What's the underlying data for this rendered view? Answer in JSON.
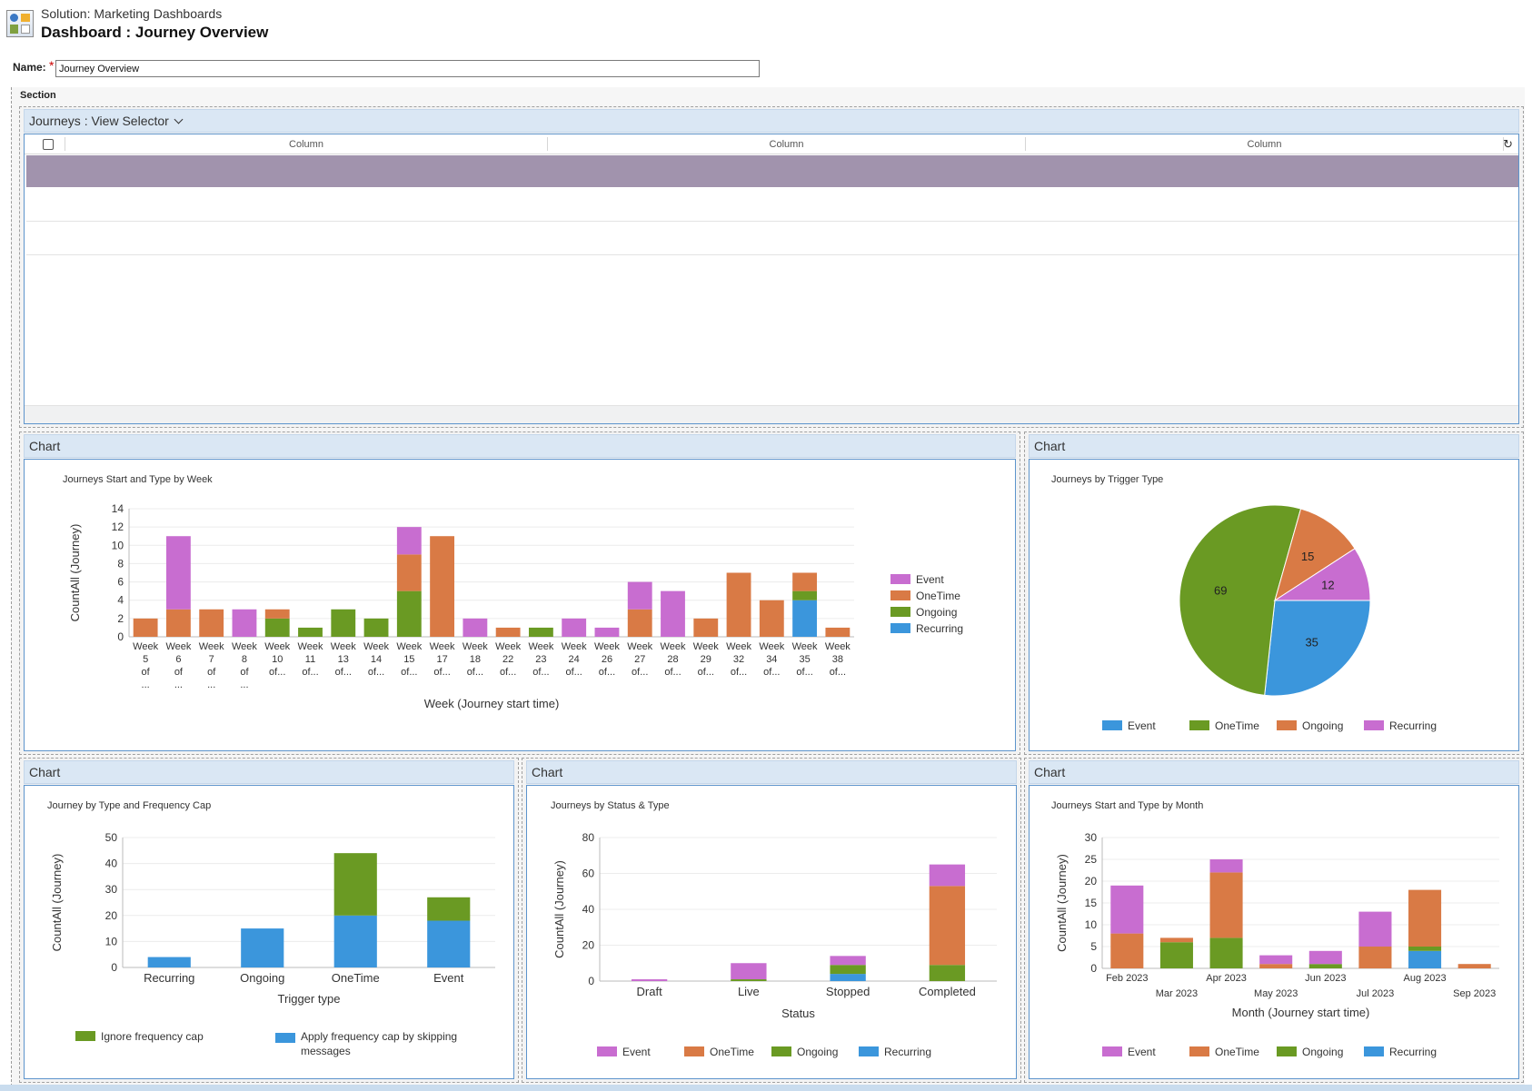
{
  "header": {
    "solution_title": "Solution: Marketing Dashboards",
    "dashboard_title": "Dashboard : Journey Overview"
  },
  "form": {
    "name_label": "Name:",
    "required_marker": "*",
    "name_value": "Journey Overview"
  },
  "section": {
    "label": "Section"
  },
  "grid_panel": {
    "title": "Journeys : View Selector",
    "columns": [
      "Column",
      "Column",
      "Column"
    ]
  },
  "panels": {
    "weekly": {
      "header": "Chart"
    },
    "trigger": {
      "header": "Chart"
    },
    "freqcap": {
      "header": "Chart"
    },
    "status": {
      "header": "Chart"
    },
    "monthly": {
      "header": "Chart"
    }
  },
  "colors": {
    "event": "#c86dd0",
    "onetime": "#d97a45",
    "ongoing": "#6a9a23",
    "recurring": "#3b96dc",
    "panel_header_bg": "#dae7f4",
    "panel_border": "#5d94cc",
    "selected_row": "#a193ad"
  },
  "chart_data": [
    {
      "id": "weekly",
      "type": "bar",
      "stacked": true,
      "title": "Journeys Start and Type by Week",
      "xlabel": "Week (Journey start time)",
      "ylabel": "CountAll (Journey)",
      "ylim": [
        0,
        14
      ],
      "yticks": [
        0,
        2,
        4,
        6,
        8,
        10,
        12,
        14
      ],
      "categories": [
        "Week 5 of ...",
        "Week 6 of ...",
        "Week 7 of ...",
        "Week 8 of ...",
        "Week 10 of...",
        "Week 11 of...",
        "Week 13 of...",
        "Week 14 of...",
        "Week 15 of...",
        "Week 17 of...",
        "Week 18 of...",
        "Week 22 of...",
        "Week 23 of...",
        "Week 24 of...",
        "Week 26 of...",
        "Week 27 of...",
        "Week 28 of...",
        "Week 29 of...",
        "Week 32 of...",
        "Week 34 of...",
        "Week 35 of...",
        "Week 38 of..."
      ],
      "tick_lines": [
        [
          "Week",
          "5",
          "of",
          "..."
        ],
        [
          "Week",
          "6",
          "of",
          "..."
        ],
        [
          "Week",
          "7",
          "of",
          "..."
        ],
        [
          "Week",
          "8",
          "of",
          "..."
        ],
        [
          "Week",
          "10",
          "of..."
        ],
        [
          "Week",
          "11",
          "of..."
        ],
        [
          "Week",
          "13",
          "of..."
        ],
        [
          "Week",
          "14",
          "of..."
        ],
        [
          "Week",
          "15",
          "of..."
        ],
        [
          "Week",
          "17",
          "of..."
        ],
        [
          "Week",
          "18",
          "of..."
        ],
        [
          "Week",
          "22",
          "of..."
        ],
        [
          "Week",
          "23",
          "of..."
        ],
        [
          "Week",
          "24",
          "of..."
        ],
        [
          "Week",
          "26",
          "of..."
        ],
        [
          "Week",
          "27",
          "of..."
        ],
        [
          "Week",
          "28",
          "of..."
        ],
        [
          "Week",
          "29",
          "of..."
        ],
        [
          "Week",
          "32",
          "of..."
        ],
        [
          "Week",
          "34",
          "of..."
        ],
        [
          "Week",
          "35",
          "of..."
        ],
        [
          "Week",
          "38",
          "of..."
        ]
      ],
      "series": [
        {
          "name": "Recurring",
          "color": "#3b96dc",
          "values": [
            0,
            0,
            0,
            0,
            0,
            0,
            0,
            0,
            0,
            0,
            0,
            0,
            0,
            0,
            0,
            0,
            0,
            0,
            0,
            0,
            4,
            0
          ]
        },
        {
          "name": "Ongoing",
          "color": "#6a9a23",
          "values": [
            0,
            0,
            0,
            0,
            2,
            1,
            3,
            2,
            5,
            0,
            0,
            0,
            1,
            0,
            0,
            0,
            0,
            0,
            0,
            0,
            1,
            0
          ]
        },
        {
          "name": "OneTime",
          "color": "#d97a45",
          "values": [
            2,
            3,
            3,
            0,
            1,
            0,
            0,
            0,
            4,
            11,
            0,
            1,
            0,
            0,
            0,
            3,
            0,
            2,
            7,
            4,
            2,
            1
          ]
        },
        {
          "name": "Event",
          "color": "#c86dd0",
          "values": [
            0,
            8,
            0,
            3,
            0,
            0,
            0,
            0,
            3,
            0,
            2,
            0,
            0,
            2,
            1,
            3,
            5,
            0,
            0,
            0,
            0,
            0
          ]
        }
      ],
      "legend": [
        "Event",
        "OneTime",
        "Ongoing",
        "Recurring"
      ],
      "legend_position": "right",
      "grid": true
    },
    {
      "id": "trigger",
      "type": "pie",
      "title": "Journeys by Trigger Type",
      "slices": [
        {
          "label": "Event",
          "value": 35,
          "color": "#3b96dc"
        },
        {
          "label": "OneTime",
          "value": 69,
          "color": "#6a9a23"
        },
        {
          "label": "Ongoing",
          "value": 15,
          "color": "#d97a45"
        },
        {
          "label": "Recurring",
          "value": 12,
          "color": "#c86dd0"
        }
      ],
      "legend": [
        "Event",
        "OneTime",
        "Ongoing",
        "Recurring"
      ],
      "legend_position": "bottom"
    },
    {
      "id": "freqcap",
      "type": "bar",
      "stacked": true,
      "title": "Journey by Type and Frequency Cap",
      "xlabel": "Trigger type",
      "ylabel": "CountAll (Journey)",
      "ylim": [
        0,
        50
      ],
      "yticks": [
        0,
        10,
        20,
        30,
        40,
        50
      ],
      "categories": [
        "Recurring",
        "Ongoing",
        "OneTime",
        "Event"
      ],
      "series": [
        {
          "name": "Apply frequency cap by skipping messages",
          "color": "#3b96dc",
          "values": [
            4,
            15,
            20,
            18
          ]
        },
        {
          "name": "Ignore frequency cap",
          "color": "#6a9a23",
          "values": [
            0,
            0,
            24,
            9
          ]
        }
      ],
      "legend": [
        "Ignore frequency cap",
        "Apply frequency cap by skipping messages"
      ],
      "legend_position": "bottom",
      "grid": true
    },
    {
      "id": "status",
      "type": "bar",
      "stacked": true,
      "title": "Journeys by Status & Type",
      "xlabel": "Status",
      "ylabel": "CountAll (Journey)",
      "ylim": [
        0,
        80
      ],
      "yticks": [
        0,
        20,
        40,
        60,
        80
      ],
      "categories": [
        "Draft",
        "Live",
        "Stopped",
        "Completed"
      ],
      "series": [
        {
          "name": "Recurring",
          "color": "#3b96dc",
          "values": [
            0,
            0,
            4,
            0
          ]
        },
        {
          "name": "Ongoing",
          "color": "#6a9a23",
          "values": [
            0,
            1,
            5,
            9
          ]
        },
        {
          "name": "OneTime",
          "color": "#d97a45",
          "values": [
            0,
            0,
            0,
            44
          ]
        },
        {
          "name": "Event",
          "color": "#c86dd0",
          "values": [
            1,
            9,
            5,
            12
          ]
        }
      ],
      "legend": [
        "Event",
        "OneTime",
        "Ongoing",
        "Recurring"
      ],
      "legend_position": "bottom",
      "grid": true
    },
    {
      "id": "monthly",
      "type": "bar",
      "stacked": true,
      "title": "Journeys Start and Type by Month",
      "xlabel": "Month (Journey start time)",
      "ylabel": "CountAll (Journey)",
      "ylim": [
        0,
        30
      ],
      "yticks": [
        0,
        5,
        10,
        15,
        20,
        25,
        30
      ],
      "categories": [
        "Feb 2023",
        "Mar 2023",
        "Apr 2023",
        "May 2023",
        "Jun 2023",
        "Jul 2023",
        "Aug 2023",
        "Sep 2023"
      ],
      "series": [
        {
          "name": "Recurring",
          "color": "#3b96dc",
          "values": [
            0,
            0,
            0,
            0,
            0,
            0,
            4,
            0
          ]
        },
        {
          "name": "Ongoing",
          "color": "#6a9a23",
          "values": [
            0,
            6,
            7,
            0,
            1,
            0,
            1,
            0
          ]
        },
        {
          "name": "OneTime",
          "color": "#d97a45",
          "values": [
            8,
            1,
            15,
            1,
            0,
            5,
            13,
            1
          ]
        },
        {
          "name": "Event",
          "color": "#c86dd0",
          "values": [
            11,
            0,
            3,
            2,
            3,
            8,
            0,
            0
          ]
        }
      ],
      "legend": [
        "Event",
        "OneTime",
        "Ongoing",
        "Recurring"
      ],
      "legend_position": "bottom",
      "grid": true
    }
  ]
}
